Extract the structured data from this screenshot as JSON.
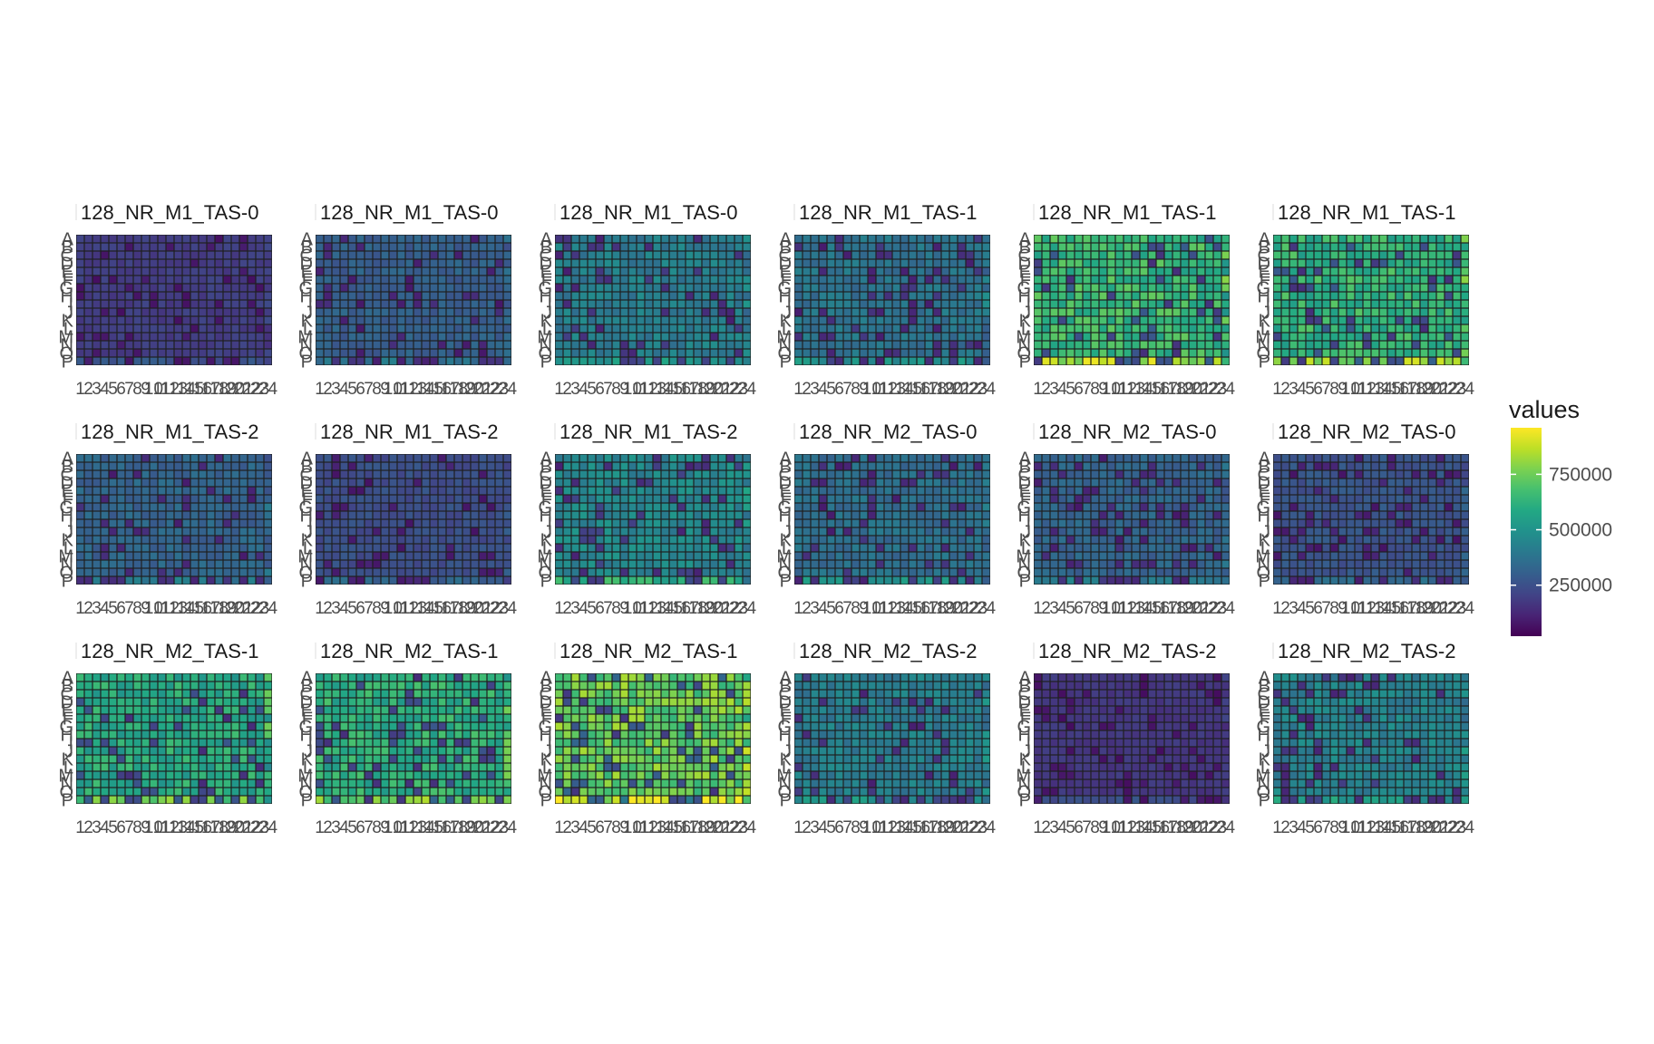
{
  "chart_data": {
    "type": "heatmap",
    "panels": [
      {
        "title": "128_NR_M1_TAS-0",
        "level": 0.18,
        "bottom_row": 0.26
      },
      {
        "title": "128_NR_M1_TAS-0",
        "level": 0.3,
        "bottom_row": 0.38
      },
      {
        "title": "128_NR_M1_TAS-0",
        "level": 0.42,
        "bottom_row": 0.52
      },
      {
        "title": "128_NR_M1_TAS-1",
        "level": 0.38,
        "bottom_row": 0.5
      },
      {
        "title": "128_NR_M1_TAS-1",
        "level": 0.66,
        "bottom_row": 0.86
      },
      {
        "title": "128_NR_M1_TAS-1",
        "level": 0.64,
        "bottom_row": 0.82
      },
      {
        "title": "128_NR_M1_TAS-2",
        "level": 0.32,
        "bottom_row": 0.42
      },
      {
        "title": "128_NR_M1_TAS-2",
        "level": 0.24,
        "bottom_row": 0.32
      },
      {
        "title": "128_NR_M1_TAS-2",
        "level": 0.46,
        "bottom_row": 0.62
      },
      {
        "title": "128_NR_M2_TAS-0",
        "level": 0.36,
        "bottom_row": 0.5
      },
      {
        "title": "128_NR_M2_TAS-0",
        "level": 0.32,
        "bottom_row": 0.4
      },
      {
        "title": "128_NR_M2_TAS-0",
        "level": 0.26,
        "bottom_row": 0.34
      },
      {
        "title": "128_NR_M2_TAS-1",
        "level": 0.6,
        "bottom_row": 0.74
      },
      {
        "title": "128_NR_M2_TAS-1",
        "level": 0.62,
        "bottom_row": 0.8
      },
      {
        "title": "128_NR_M2_TAS-1",
        "level": 0.76,
        "bottom_row": 0.92
      },
      {
        "title": "128_NR_M2_TAS-2",
        "level": 0.42,
        "bottom_row": 0.52
      },
      {
        "title": "128_NR_M2_TAS-2",
        "level": 0.16,
        "bottom_row": 0.24
      },
      {
        "title": "128_NR_M2_TAS-2",
        "level": 0.44,
        "bottom_row": 0.54
      }
    ],
    "rows": [
      "A",
      "B",
      "C",
      "D",
      "E",
      "F",
      "G",
      "H",
      "I",
      "J",
      "K",
      "L",
      "M",
      "N",
      "O",
      "P"
    ],
    "columns": [
      "1",
      "2",
      "3",
      "4",
      "5",
      "6",
      "7",
      "8",
      "9",
      "10",
      "11",
      "12",
      "13",
      "14",
      "15",
      "16",
      "17",
      "18",
      "19",
      "20",
      "21",
      "22",
      "23",
      "24"
    ],
    "legend": {
      "title": "values",
      "ticks": [
        "250000",
        "500000",
        "750000"
      ],
      "tick_values": [
        250000,
        500000,
        750000
      ],
      "range": [
        20000,
        960000
      ]
    },
    "colorscale": "viridis",
    "colors": [
      "#440154",
      "#482475",
      "#414487",
      "#355f8d",
      "#2a788e",
      "#21918c",
      "#22a884",
      "#44bf70",
      "#7ad151",
      "#bddf26",
      "#fde725"
    ]
  }
}
